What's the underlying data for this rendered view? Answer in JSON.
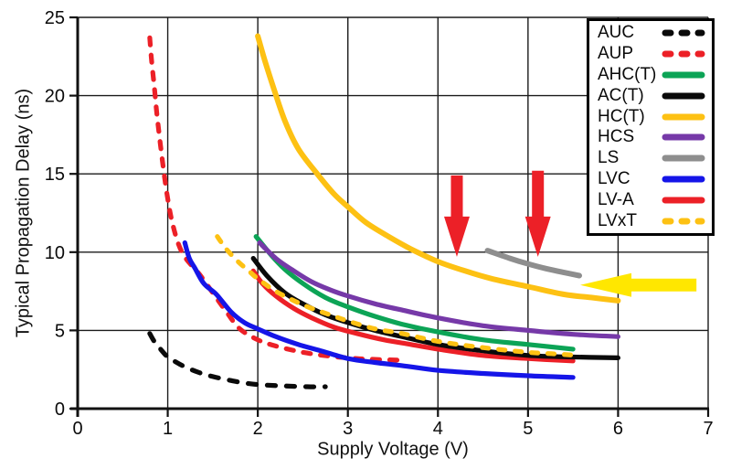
{
  "chart_data": {
    "type": "line",
    "title": "",
    "xlabel": "Supply Voltage (V)",
    "ylabel": "Typical Propagation Delay (ns)",
    "xlim": [
      0,
      7
    ],
    "ylim": [
      0,
      25
    ],
    "x_ticks": [
      0,
      1,
      2,
      3,
      4,
      5,
      6,
      7
    ],
    "y_ticks": [
      0,
      5,
      10,
      15,
      20,
      25
    ],
    "grid": true,
    "legend_position": "top-right",
    "axis_color": "#111111",
    "grid_color": "#1b1b1b",
    "series": [
      {
        "name": "AUC",
        "color": "#0a0a0a",
        "dash": "dashed",
        "points": [
          [
            0.8,
            4.8
          ],
          [
            0.85,
            4.3
          ],
          [
            0.92,
            3.8
          ],
          [
            1.0,
            3.3
          ],
          [
            1.1,
            2.95
          ],
          [
            1.2,
            2.65
          ],
          [
            1.35,
            2.3
          ],
          [
            1.5,
            2.05
          ],
          [
            1.7,
            1.8
          ],
          [
            1.9,
            1.6
          ],
          [
            2.1,
            1.5
          ],
          [
            2.3,
            1.45
          ],
          [
            2.55,
            1.4
          ],
          [
            2.75,
            1.4
          ]
        ]
      },
      {
        "name": "AUP",
        "color": "#ec2027",
        "dash": "dashed",
        "points": [
          [
            0.8,
            23.7
          ],
          [
            0.82,
            22.3
          ],
          [
            0.85,
            20.6
          ],
          [
            0.88,
            18.8
          ],
          [
            0.92,
            16.8
          ],
          [
            0.96,
            15.0
          ],
          [
            1.0,
            13.4
          ],
          [
            1.05,
            11.9
          ],
          [
            1.12,
            10.5
          ],
          [
            1.2,
            9.6
          ],
          [
            1.35,
            8.6
          ],
          [
            1.5,
            7.4
          ],
          [
            1.65,
            6.2
          ],
          [
            1.8,
            5.1
          ],
          [
            2.0,
            4.4
          ],
          [
            2.2,
            4.0
          ],
          [
            2.5,
            3.6
          ],
          [
            2.8,
            3.35
          ],
          [
            3.1,
            3.2
          ],
          [
            3.3,
            3.15
          ],
          [
            3.55,
            3.1
          ]
        ]
      },
      {
        "name": "AHC(T)",
        "color": "#0ca456",
        "dash": "solid",
        "points": [
          [
            1.98,
            11.0
          ],
          [
            2.15,
            9.8
          ],
          [
            2.3,
            8.9
          ],
          [
            2.5,
            8.0
          ],
          [
            2.75,
            7.1
          ],
          [
            3.0,
            6.5
          ],
          [
            3.3,
            5.9
          ],
          [
            3.6,
            5.4
          ],
          [
            4.0,
            4.9
          ],
          [
            4.5,
            4.4
          ],
          [
            5.0,
            4.1
          ],
          [
            5.5,
            3.8
          ]
        ]
      },
      {
        "name": "AC(T)",
        "color": "#0a0a0a",
        "dash": "solid",
        "points": [
          [
            1.95,
            9.6
          ],
          [
            2.1,
            8.5
          ],
          [
            2.3,
            7.4
          ],
          [
            2.5,
            6.7
          ],
          [
            2.75,
            6.0
          ],
          [
            3.0,
            5.5
          ],
          [
            3.3,
            5.0
          ],
          [
            3.6,
            4.6
          ],
          [
            4.0,
            4.1
          ],
          [
            4.5,
            3.7
          ],
          [
            5.0,
            3.4
          ],
          [
            5.5,
            3.3
          ],
          [
            6.0,
            3.25
          ]
        ]
      },
      {
        "name": "HC(T)",
        "color": "#fdc113",
        "dash": "solid",
        "points": [
          [
            2.0,
            23.8
          ],
          [
            2.08,
            22.2
          ],
          [
            2.18,
            20.4
          ],
          [
            2.3,
            18.4
          ],
          [
            2.45,
            16.6
          ],
          [
            2.66,
            15.0
          ],
          [
            2.85,
            13.7
          ],
          [
            3.0,
            12.9
          ],
          [
            3.2,
            11.9
          ],
          [
            3.45,
            11.0
          ],
          [
            3.7,
            10.2
          ],
          [
            4.0,
            9.4
          ],
          [
            4.3,
            8.8
          ],
          [
            4.6,
            8.3
          ],
          [
            5.0,
            7.8
          ],
          [
            5.4,
            7.3
          ],
          [
            5.7,
            7.1
          ],
          [
            6.0,
            6.9
          ]
        ]
      },
      {
        "name": "HCS",
        "color": "#7639a8",
        "dash": "solid",
        "points": [
          [
            2.02,
            10.6
          ],
          [
            2.2,
            9.6
          ],
          [
            2.4,
            8.8
          ],
          [
            2.6,
            8.1
          ],
          [
            2.8,
            7.6
          ],
          [
            3.0,
            7.2
          ],
          [
            3.3,
            6.7
          ],
          [
            3.6,
            6.3
          ],
          [
            4.0,
            5.8
          ],
          [
            4.5,
            5.3
          ],
          [
            5.0,
            5.0
          ],
          [
            5.5,
            4.75
          ],
          [
            6.0,
            4.6
          ]
        ]
      },
      {
        "name": "LS",
        "color": "#8e8e8e",
        "dash": "solid",
        "points": [
          [
            4.55,
            10.1
          ],
          [
            4.8,
            9.6
          ],
          [
            5.0,
            9.25
          ],
          [
            5.2,
            8.95
          ],
          [
            5.4,
            8.7
          ],
          [
            5.57,
            8.5
          ]
        ]
      },
      {
        "name": "LVC",
        "color": "#1515e8",
        "dash": "solid",
        "points": [
          [
            1.19,
            10.6
          ],
          [
            1.24,
            9.6
          ],
          [
            1.3,
            9.0
          ],
          [
            1.4,
            8.0
          ],
          [
            1.54,
            7.3
          ],
          [
            1.7,
            6.2
          ],
          [
            1.85,
            5.5
          ],
          [
            2.0,
            5.1
          ],
          [
            2.2,
            4.6
          ],
          [
            2.45,
            4.1
          ],
          [
            2.7,
            3.7
          ],
          [
            3.0,
            3.2
          ],
          [
            3.3,
            2.95
          ],
          [
            3.6,
            2.75
          ],
          [
            4.0,
            2.45
          ],
          [
            4.5,
            2.25
          ],
          [
            5.0,
            2.1
          ],
          [
            5.5,
            2.0
          ]
        ]
      },
      {
        "name": "LV-A",
        "color": "#ec2027",
        "dash": "solid",
        "points": [
          [
            1.95,
            8.8
          ],
          [
            2.05,
            8.0
          ],
          [
            2.2,
            7.2
          ],
          [
            2.4,
            6.4
          ],
          [
            2.6,
            5.8
          ],
          [
            2.85,
            5.2
          ],
          [
            3.1,
            4.8
          ],
          [
            3.4,
            4.4
          ],
          [
            3.7,
            4.1
          ],
          [
            4.0,
            3.8
          ],
          [
            4.5,
            3.4
          ],
          [
            5.0,
            3.2
          ],
          [
            5.5,
            3.05
          ]
        ]
      },
      {
        "name": "LVxT",
        "color": "#fdc113",
        "dash": "dashed",
        "points": [
          [
            1.55,
            11.0
          ],
          [
            1.65,
            10.2
          ],
          [
            1.78,
            9.4
          ],
          [
            1.9,
            8.8
          ],
          [
            2.0,
            8.3
          ],
          [
            2.2,
            7.5
          ],
          [
            2.4,
            6.9
          ],
          [
            2.6,
            6.4
          ],
          [
            2.8,
            6.0
          ],
          [
            3.0,
            5.6
          ],
          [
            3.3,
            5.1
          ],
          [
            3.6,
            4.8
          ],
          [
            4.0,
            4.3
          ],
          [
            4.5,
            3.9
          ],
          [
            5.0,
            3.6
          ],
          [
            5.3,
            3.5
          ],
          [
            5.55,
            3.4
          ]
        ]
      }
    ],
    "annotations": {
      "red_down_arrows": [
        {
          "x": 4.21,
          "y_top": 14.9,
          "y_tip": 9.7
        },
        {
          "x": 5.11,
          "y_top": 15.2,
          "y_tip": 9.7
        }
      ],
      "yellow_left_arrow": {
        "x_tip": 5.58,
        "x_tail": 6.87,
        "y": 7.9
      },
      "red_color": "#ec2027",
      "yellow_color": "#ffe700"
    }
  }
}
